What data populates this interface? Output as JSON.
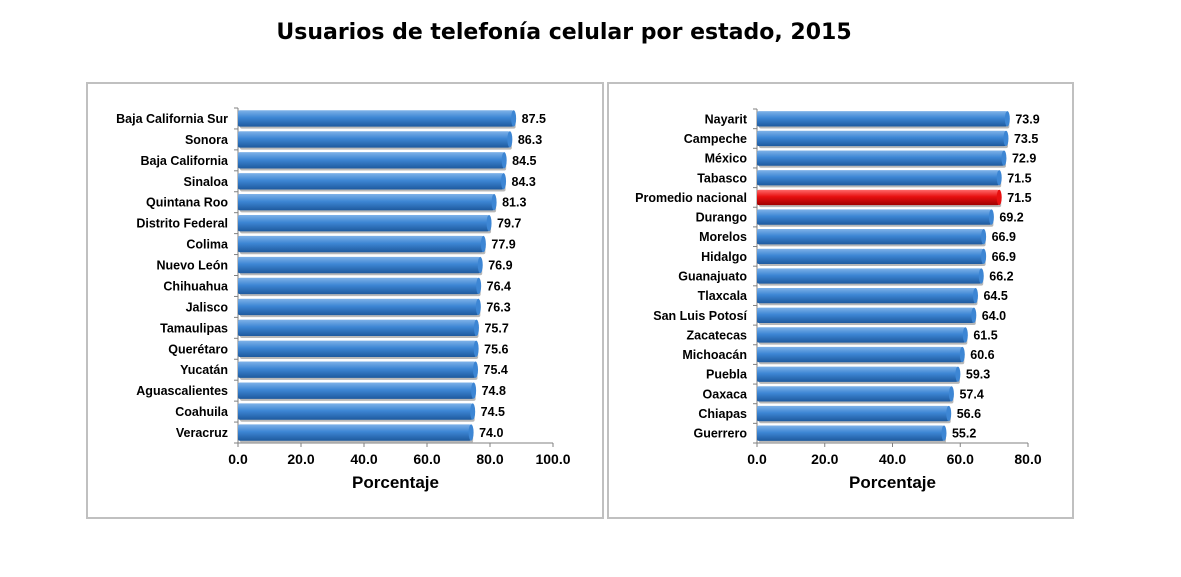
{
  "title": "Usuarios de telefonía celular por estado, 2015",
  "colors": {
    "bar_main": "#3d86d4",
    "bar_dark": "#1e5a9e",
    "bar_light": "#7fb2e8",
    "highlight_main": "#e81010",
    "highlight_dark": "#a00000",
    "highlight_light": "#ff6a6a",
    "axis": "#808080",
    "panel_border": "#c0c0c0"
  },
  "chart_data": [
    {
      "type": "bar",
      "orientation": "horizontal",
      "categories": [
        "Baja California Sur",
        "Sonora",
        "Baja California",
        "Sinaloa",
        "Quintana Roo",
        "Distrito Federal",
        "Colima",
        "Nuevo León",
        "Chihuahua",
        "Jalisco",
        "Tamaulipas",
        "Querétaro",
        "Yucatán",
        "Aguascalientes",
        "Coahuila",
        "Veracruz"
      ],
      "values": [
        87.5,
        86.3,
        84.5,
        84.3,
        81.3,
        79.7,
        77.9,
        76.9,
        76.4,
        76.3,
        75.7,
        75.6,
        75.4,
        74.8,
        74.5,
        74.0
      ],
      "value_labels": [
        "87.5",
        "86.3",
        "84.5",
        "84.3",
        "81.3",
        "79.7",
        "77.9",
        "76.9",
        "76.4",
        "76.3",
        "75.7",
        "75.6",
        "75.4",
        "74.8",
        "74.5",
        "74.0"
      ],
      "xlabel": "Porcentaje",
      "ylabel": "",
      "xlim": [
        0,
        100
      ],
      "xticks": [
        0,
        20,
        40,
        60,
        80,
        100
      ],
      "xtick_labels": [
        "0.0",
        "20.0",
        "40.0",
        "60.0",
        "80.0",
        "100.0"
      ],
      "highlight": [],
      "grid": false
    },
    {
      "type": "bar",
      "orientation": "horizontal",
      "categories": [
        "Nayarit",
        "Campeche",
        "México",
        "Tabasco",
        "Promedio nacional",
        "Durango",
        "Morelos",
        "Hidalgo",
        "Guanajuato",
        "Tlaxcala",
        "San Luis Potosí",
        "Zacatecas",
        "Michoacán",
        "Puebla",
        "Oaxaca",
        "Chiapas",
        "Guerrero"
      ],
      "values": [
        73.9,
        73.5,
        72.9,
        71.5,
        71.5,
        69.2,
        66.9,
        66.9,
        66.2,
        64.5,
        64.0,
        61.5,
        60.6,
        59.3,
        57.4,
        56.6,
        55.2
      ],
      "value_labels": [
        "73.9",
        "73.5",
        "72.9",
        "71.5",
        "71.5",
        "69.2",
        "66.9",
        "66.9",
        "66.2",
        "64.5",
        "64.0",
        "61.5",
        "60.6",
        "59.3",
        "57.4",
        "56.6",
        "55.2"
      ],
      "xlabel": "Porcentaje",
      "ylabel": "",
      "xlim": [
        0,
        80
      ],
      "xticks": [
        0,
        20,
        40,
        60,
        80
      ],
      "xtick_labels": [
        "0.0",
        "20.0",
        "40.0",
        "60.0",
        "80.0"
      ],
      "highlight": [
        "Promedio nacional"
      ],
      "grid": false
    }
  ]
}
